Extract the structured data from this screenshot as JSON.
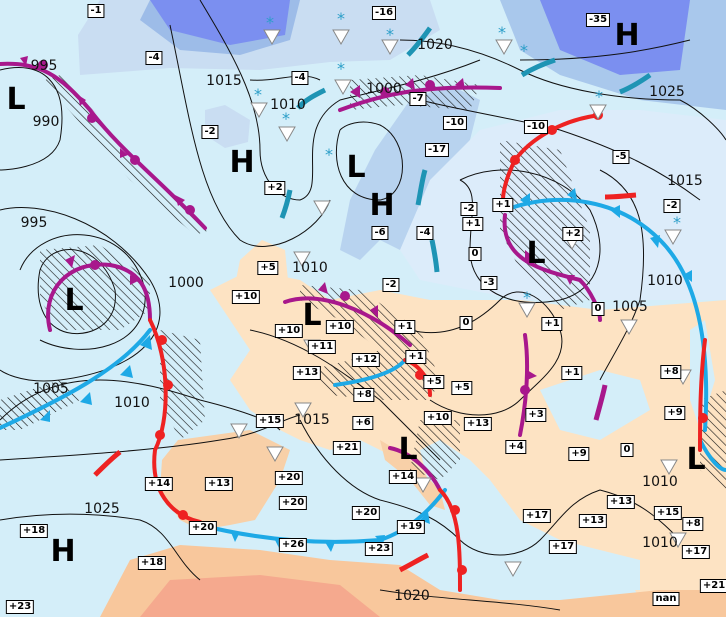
{
  "map": {
    "colors": {
      "sea": "#d4eef9",
      "land": "#fde3c3",
      "warm_land": "#f8c79c",
      "hot_land": "#f5a98e",
      "cold": "#a9c8ec",
      "very_cold": "#7b8ff0",
      "cold_front": "#1ea9e6",
      "warm_front": "#ee2222",
      "occluded_front": "#a8188c",
      "jet_arrow": "#1e94b4"
    },
    "pressure_centers": [
      "L",
      "H",
      "L",
      "H",
      "L",
      "L",
      "H",
      "H",
      "L",
      "L",
      "L"
    ],
    "isobar_labels": [
      "995",
      "990",
      "1015",
      "1010",
      "995",
      "1000",
      "1005",
      "1010",
      "1025",
      "1015",
      "1020",
      "1000",
      "1025",
      "1015",
      "1010",
      "1005",
      "1010",
      "1020",
      "1010",
      "1010"
    ],
    "temperatures": [
      "-1",
      "-4",
      "-2",
      "-4",
      "+2",
      "-16",
      "-35",
      "-7",
      "-10",
      "-10",
      "-17",
      "-5",
      "-2",
      "-2",
      "+1",
      "+1",
      "-6",
      "-4",
      "+2",
      "0",
      "-3",
      "-2",
      "0",
      "+1",
      "0",
      "+5",
      "+10",
      "+10",
      "+10",
      "+11",
      "+1",
      "+12",
      "+1",
      "+13",
      "+8",
      "+5",
      "+5",
      "+6",
      "+10",
      "+13",
      "+15",
      "+21",
      "+3",
      "+4",
      "+1",
      "+9",
      "0",
      "+8",
      "+9",
      "+13",
      "+13",
      "+17",
      "+17",
      "+15",
      "+8",
      "+17",
      "+21",
      "nan",
      "+14",
      "+19",
      "+23",
      "+20",
      "+14",
      "+13",
      "+20",
      "+20",
      "+18",
      "+20",
      "+26",
      "+18",
      "+23"
    ],
    "symbols": {
      "snow": "snow-icon",
      "shower": "shower-triangle-icon",
      "rain": "raindrop-icon"
    }
  }
}
